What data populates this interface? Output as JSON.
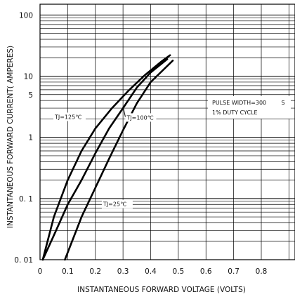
{
  "chart_data": {
    "type": "line",
    "xlabel": "INSTANTANEOUS FORWARD VOLTAGE (VOLTS)",
    "ylabel": "INSTANTANEOUS FORWARD CURRENT( AMPERES)",
    "x_scale": "linear",
    "y_scale": "log",
    "xlim": [
      0,
      0.85
    ],
    "ylim": [
      0.01,
      150
    ],
    "x_ticks": [
      "0",
      "0.1",
      "0.2",
      "0.3",
      "0.4",
      "0.5",
      "0.6",
      "0.7",
      "0.8"
    ],
    "x_tick_values": [
      0,
      0.1,
      0.2,
      0.3,
      0.4,
      0.5,
      0.6,
      0.7,
      0.8
    ],
    "y_ticks": [
      "0. 01",
      "0. 1",
      "1",
      "5",
      "10",
      "100"
    ],
    "y_tick_values": [
      0.01,
      0.1,
      1,
      5,
      10,
      100
    ],
    "grid": true,
    "series": [
      {
        "name": "TJ=125℃",
        "x": [
          0.01,
          0.05,
          0.1,
          0.15,
          0.2,
          0.26,
          0.32,
          0.38,
          0.44,
          0.47
        ],
        "y": [
          0.01,
          0.05,
          0.2,
          0.6,
          1.4,
          3.0,
          5.8,
          10.5,
          17.5,
          22.0
        ]
      },
      {
        "name": "TJ=100℃",
        "x": [
          0.01,
          0.05,
          0.1,
          0.15,
          0.2,
          0.25,
          0.3,
          0.35,
          0.4,
          0.46
        ],
        "y": [
          0.01,
          0.025,
          0.08,
          0.2,
          0.55,
          1.4,
          3.0,
          6.5,
          11.5,
          19.0
        ]
      },
      {
        "name": "TJ=25℃",
        "x": [
          0.09,
          0.15,
          0.2,
          0.25,
          0.3,
          0.35,
          0.4,
          0.48
        ],
        "y": [
          0.01,
          0.05,
          0.15,
          0.45,
          1.3,
          3.6,
          8.0,
          18.0
        ]
      }
    ],
    "annotations": [
      {
        "text": "TJ=125℃",
        "series": "TJ=125℃",
        "near_x": 0.16,
        "near_y": 2.0
      },
      {
        "text": "TJ=100℃",
        "series": "TJ=100℃",
        "near_x": 0.41,
        "near_y": 1.95
      },
      {
        "text": "TJ=25℃",
        "series": "TJ=25℃",
        "near_x": 0.33,
        "near_y": 0.075
      },
      {
        "text": "PULSE WIDTH=300",
        "near_x": 0.83,
        "near_y": 6.2
      },
      {
        "text": "S",
        "near_x": 0.83,
        "near_y": 6.2
      },
      {
        "text": "1% DUTY CYCLE",
        "near_x": 0.83,
        "near_y": 4.3
      }
    ]
  }
}
